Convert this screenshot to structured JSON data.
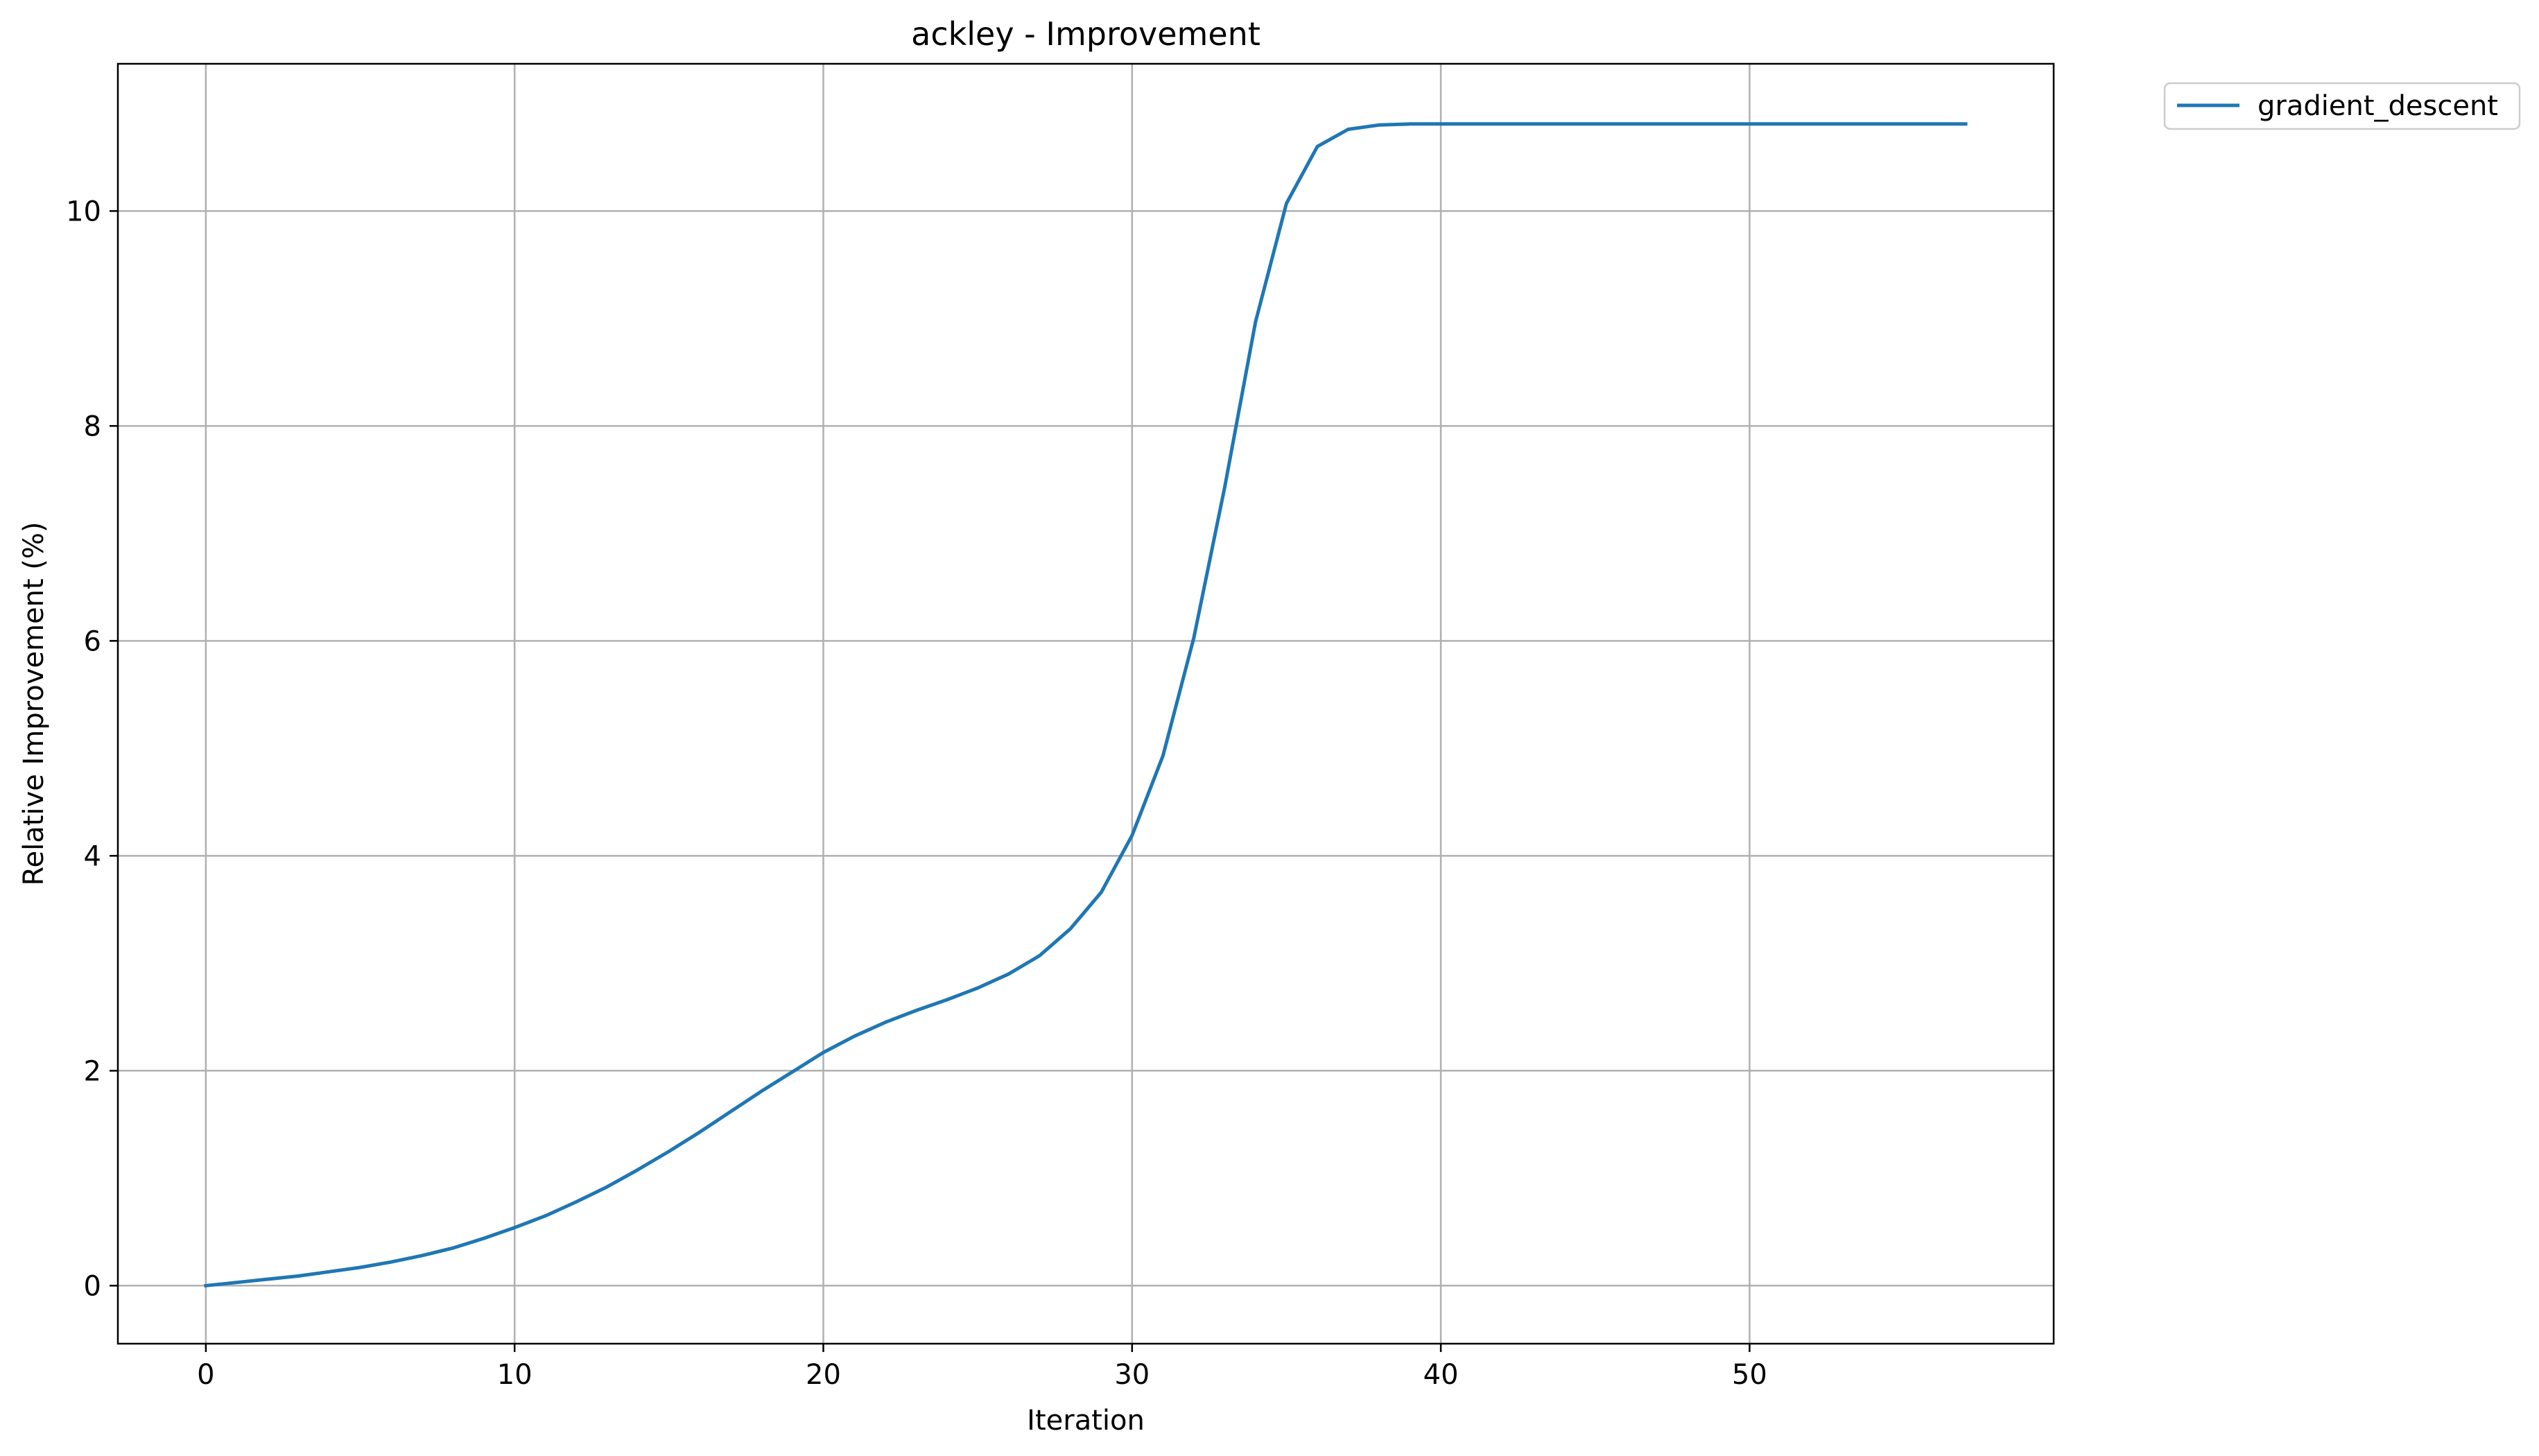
{
  "chart_data": {
    "type": "line",
    "title": "ackley - Improvement",
    "xlabel": "Iteration",
    "ylabel": "Relative Improvement (%)",
    "xlim": [
      -2.85,
      59.85
    ],
    "ylim": [
      -0.54,
      11.37
    ],
    "xticks": [
      0,
      10,
      20,
      30,
      40,
      50
    ],
    "yticks": [
      0,
      2,
      4,
      6,
      8,
      10
    ],
    "grid": true,
    "legend_position": "outside-top-right",
    "series": [
      {
        "name": "gradient_descent",
        "color": "#1f77b4",
        "x": [
          0,
          1,
          2,
          3,
          4,
          5,
          6,
          7,
          8,
          9,
          10,
          11,
          12,
          13,
          14,
          15,
          16,
          17,
          18,
          19,
          20,
          21,
          22,
          23,
          24,
          25,
          26,
          27,
          28,
          29,
          30,
          31,
          32,
          33,
          34,
          35,
          36,
          37,
          38,
          39,
          40,
          41,
          42,
          43,
          44,
          45,
          46,
          47,
          48,
          49,
          50,
          51,
          52,
          53,
          54,
          55,
          56,
          57
        ],
        "values": [
          0,
          0.03,
          0.06,
          0.09,
          0.13,
          0.17,
          0.22,
          0.28,
          0.35,
          0.44,
          0.54,
          0.65,
          0.78,
          0.92,
          1.08,
          1.25,
          1.43,
          1.62,
          1.81,
          1.99,
          2.17,
          2.32,
          2.45,
          2.56,
          2.66,
          2.77,
          2.9,
          3.07,
          3.32,
          3.66,
          4.19,
          4.93,
          6.03,
          7.43,
          8.97,
          10.07,
          10.6,
          10.76,
          10.8,
          10.81,
          10.81,
          10.81,
          10.81,
          10.81,
          10.81,
          10.81,
          10.81,
          10.81,
          10.81,
          10.81,
          10.81,
          10.81,
          10.81,
          10.81,
          10.81,
          10.81,
          10.81,
          10.81
        ]
      }
    ]
  }
}
